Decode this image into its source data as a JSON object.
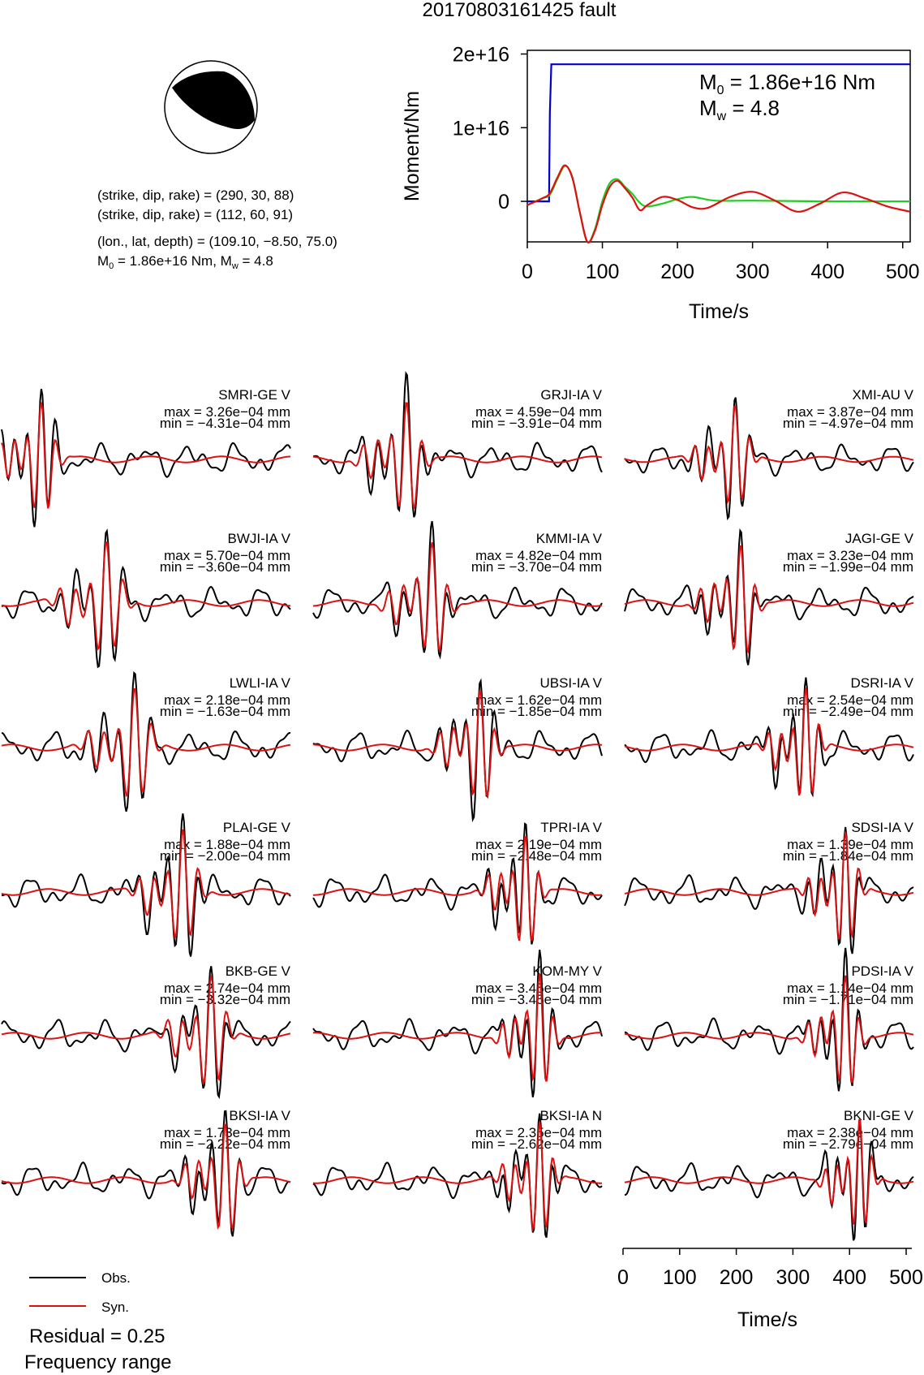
{
  "title": "20170803161425 fault",
  "focal": {
    "line1": "(strike, dip, rake) = (290, 30, 88)",
    "line2": "(strike, dip, rake) = (112, 60, 91)",
    "line3": "(lon., lat, depth) = (109.10, −8.50, 75.0)",
    "m0_text": "M",
    "m0_sub": "0",
    "m0_rest": " = 1.86e+16 Nm, M",
    "mw_sub": "w",
    "mw_rest": " = 4.8"
  },
  "moment_panel": {
    "ylabel": "Moment/Nm",
    "xlabel": "Time/s",
    "m0_annotation": {
      "prefix": "M",
      "sub": "0",
      "value": " = 1.86e+16 Nm"
    },
    "mw_annotation": {
      "prefix": "M",
      "sub": "w",
      "value": " = 4.8"
    }
  },
  "legend": {
    "obs": "Obs.",
    "syn": "Syn.",
    "residual": "Residual = 0.25",
    "frequency": "Frequency range"
  },
  "waveform_axis": {
    "xlabel": "Time/s"
  },
  "colors": {
    "obs": "#000000",
    "syn": "#dd1111",
    "moment_step": "#0000cc",
    "moment_green": "#22cc22",
    "moment_red": "#dd1111"
  },
  "chart_data": [
    {
      "type": "line",
      "title": "",
      "xlabel": "Time/s",
      "ylabel": "Moment/Nm",
      "xlim": [
        0,
        510
      ],
      "ylim": [
        -5500000000000000.0,
        2.05e+16
      ],
      "xticks": [
        0,
        100,
        200,
        300,
        400,
        500
      ],
      "yticks": [
        0,
        1e+16,
        2e+16
      ],
      "yticklabels": [
        "0",
        "1e+16",
        "2e+16"
      ],
      "series": [
        {
          "name": "moment_step",
          "color": "#0000cc",
          "x": [
            0,
            29,
            30,
            32,
            510
          ],
          "y": [
            0,
            0,
            1.2e+16,
            1.86e+16,
            1.86e+16
          ]
        },
        {
          "name": "moment_rate_green",
          "color": "#22cc22",
          "x": [
            0,
            20,
            30,
            40,
            50,
            60,
            70,
            80,
            90,
            100,
            110,
            120,
            130,
            140,
            150,
            160,
            180,
            200,
            220,
            250,
            300,
            400,
            510
          ],
          "y": [
            -500000000000000.0,
            400000000000000.0,
            900000000000000.0,
            3000000000000000.0,
            4800000000000000.0,
            3300000000000000.0,
            -1500000000000000.0,
            -5500000000000000.0,
            -3800000000000000.0,
            0,
            2500000000000000.0,
            3000000000000000.0,
            2000000000000000.0,
            1000000000000000.0,
            -200000000000000.0,
            -700000000000000.0,
            -300000000000000.0,
            300000000000000.0,
            600000000000000.0,
            100000000000000.0,
            100000000000000.0,
            0,
            0
          ]
        },
        {
          "name": "moment_rate_red",
          "color": "#dd1111",
          "x": [
            0,
            20,
            30,
            40,
            50,
            60,
            70,
            80,
            90,
            100,
            110,
            120,
            130,
            140,
            150,
            160,
            180,
            200,
            220,
            240,
            270,
            300,
            330,
            360,
            390,
            420,
            450,
            480,
            510
          ],
          "y": [
            -500000000000000.0,
            400000000000000.0,
            1100000000000000.0,
            3200000000000000.0,
            4900000000000000.0,
            3200000000000000.0,
            -1500000000000000.0,
            -5500000000000000.0,
            -4000000000000000.0,
            -500000000000000.0,
            2000000000000000.0,
            2800000000000000.0,
            1800000000000000.0,
            500000000000000.0,
            -1200000000000000.0,
            -500000000000000.0,
            600000000000000.0,
            200000000000000.0,
            -800000000000000.0,
            -900000000000000.0,
            600000000000000.0,
            1300000000000000.0,
            100000000000000.0,
            -1400000000000000.0,
            -300000000000000.0,
            1200000000000000.0,
            400000000000000.0,
            -700000000000000.0,
            -1400000000000000.0
          ]
        }
      ]
    },
    {
      "type": "line",
      "title": "Waveform fits",
      "xlabel": "Time/s",
      "xlim": [
        0,
        510
      ],
      "xticks": [
        0,
        100,
        200,
        300,
        400,
        500
      ],
      "traces": [
        {
          "station": "SMRI-GE V",
          "max": "max = 3.26e−04 mm",
          "min": "min = −4.31e−04 mm",
          "peak": 70,
          "amp": 1.0,
          "period": 26
        },
        {
          "station": "GRJI-IA V",
          "max": "max = 4.59e−04 mm",
          "min": "min = −3.91e−04 mm",
          "peak": 165,
          "amp": 1.0,
          "period": 28
        },
        {
          "station": "XMI-AU V",
          "max": "max = 3.87e−04 mm",
          "min": "min = −4.97e−04 mm",
          "peak": 195,
          "amp": 0.9,
          "period": 26
        },
        {
          "station": "BWJI-IA V",
          "max": "max = 5.70e−04 mm",
          "min": "min = −3.60e−04 mm",
          "peak": 185,
          "amp": 1.0,
          "period": 30
        },
        {
          "station": "KMMI-IA V",
          "max": "max = 4.82e−04 mm",
          "min": "min = −3.70e−04 mm",
          "peak": 210,
          "amp": 1.0,
          "period": 28
        },
        {
          "station": "JAGI-GE V",
          "max": "max = 3.23e−04 mm",
          "min": "min = −1.99e−04 mm",
          "peak": 205,
          "amp": 1.0,
          "period": 26
        },
        {
          "station": "LWLI-IA V",
          "max": "max = 2.18e−04 mm",
          "min": "min = −1.63e−04 mm",
          "peak": 235,
          "amp": 1.0,
          "period": 30
        },
        {
          "station": "UBSI-IA V",
          "max": "max = 1.62e−04 mm",
          "min": "min = −1.85e−04 mm",
          "peak": 295,
          "amp": 1.0,
          "period": 26
        },
        {
          "station": "DSRI-IA V",
          "max": "max = 2.54e−04 mm",
          "min": "min = −2.49e−04 mm",
          "peak": 320,
          "amp": 1.0,
          "period": 24
        },
        {
          "station": "PLAI-GE V",
          "max": "max = 1.88e−04 mm",
          "min": "min = −2.00e−04 mm",
          "peak": 320,
          "amp": 1.0,
          "period": 28
        },
        {
          "station": "TPRI-IA V",
          "max": "max = 2.19e−04 mm",
          "min": "min = −2.48e−04 mm",
          "peak": 375,
          "amp": 1.0,
          "period": 24
        },
        {
          "station": "SDSI-IA V",
          "max": "max = 1.39e−04 mm",
          "min": "min = −1.84e−04 mm",
          "peak": 390,
          "amp": 1.0,
          "period": 24
        },
        {
          "station": "BKB-GE V",
          "max": "max = 2.74e−04 mm",
          "min": "min = −3.32e−04 mm",
          "peak": 370,
          "amp": 1.0,
          "period": 28
        },
        {
          "station": "KOM-MY V",
          "max": "max = 3.45e−04 mm",
          "min": "min = −3.45e−04 mm",
          "peak": 400,
          "amp": 1.0,
          "period": 24
        },
        {
          "station": "PDSI-IA V",
          "max": "max = 1.14e−04 mm",
          "min": "min = −1.71e−04 mm",
          "peak": 390,
          "amp": 1.0,
          "period": 24
        },
        {
          "station": "BKSI-IA V",
          "max": "max = 1.73e−04 mm",
          "min": "min = −2.22e−04 mm",
          "peak": 395,
          "amp": 1.0,
          "period": 26
        },
        {
          "station": "BKSI-IA N",
          "max": "max = 2.35e−04 mm",
          "min": "min = −2.62e−04 mm",
          "peak": 400,
          "amp": 1.0,
          "period": 24
        },
        {
          "station": "BKNI-GE V",
          "max": "max = 2.38e−04 mm",
          "min": "min = −2.79e−04 mm",
          "peak": 415,
          "amp": 1.0,
          "period": 22
        }
      ]
    }
  ]
}
